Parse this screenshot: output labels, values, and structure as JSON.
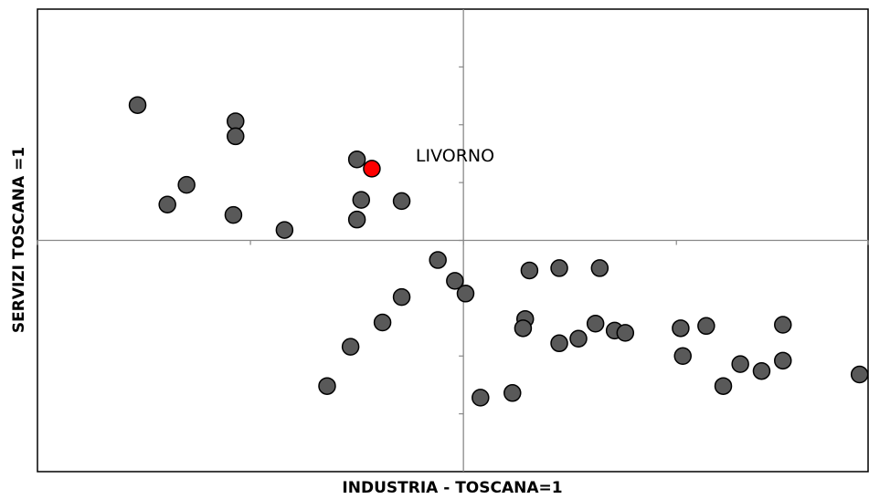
{
  "chart_data": {
    "type": "scatter",
    "title": "",
    "xlabel": "INDUSTRIA - TOSCANA=1",
    "ylabel": "SERVIZI TOSCANA =1",
    "xlim": [
      -20,
      19
    ],
    "ylim": [
      -20,
      20
    ],
    "center": [
      0,
      0
    ],
    "x_ticks": [
      -20,
      -10,
      0,
      10,
      19
    ],
    "y_ticks": [
      -15,
      -10,
      -5,
      0,
      5,
      10,
      15
    ],
    "grid": false,
    "highlight": {
      "label": "LIVORNO",
      "x": -4.3,
      "y": 6.2
    },
    "points": [
      {
        "x": -15.3,
        "y": 11.7
      },
      {
        "x": -10.7,
        "y": 10.3
      },
      {
        "x": -10.7,
        "y": 9.0
      },
      {
        "x": -5.0,
        "y": 7.0
      },
      {
        "x": -13.0,
        "y": 4.8
      },
      {
        "x": -13.9,
        "y": 3.1
      },
      {
        "x": -10.8,
        "y": 2.2
      },
      {
        "x": -8.4,
        "y": 0.9
      },
      {
        "x": -4.8,
        "y": 3.5
      },
      {
        "x": -5.0,
        "y": 1.8
      },
      {
        "x": -2.9,
        "y": 3.4
      },
      {
        "x": -1.2,
        "y": -1.7
      },
      {
        "x": -0.4,
        "y": -3.5
      },
      {
        "x": 0.1,
        "y": -4.6
      },
      {
        "x": -2.9,
        "y": -4.9
      },
      {
        "x": -3.8,
        "y": -7.1
      },
      {
        "x": -5.3,
        "y": -9.2
      },
      {
        "x": -6.4,
        "y": -12.6
      },
      {
        "x": 0.8,
        "y": -13.6
      },
      {
        "x": 2.3,
        "y": -13.2
      },
      {
        "x": 2.9,
        "y": -6.8
      },
      {
        "x": 2.8,
        "y": -7.6
      },
      {
        "x": 3.1,
        "y": -2.6
      },
      {
        "x": 4.5,
        "y": -2.4
      },
      {
        "x": 6.4,
        "y": -2.4
      },
      {
        "x": 4.5,
        "y": -8.9
      },
      {
        "x": 5.4,
        "y": -8.5
      },
      {
        "x": 6.2,
        "y": -7.2
      },
      {
        "x": 7.1,
        "y": -7.8
      },
      {
        "x": 7.6,
        "y": -8.0
      },
      {
        "x": 10.2,
        "y": -7.6
      },
      {
        "x": 11.4,
        "y": -7.4
      },
      {
        "x": 15.0,
        "y": -7.3
      },
      {
        "x": 10.3,
        "y": -10.0
      },
      {
        "x": 12.2,
        "y": -12.6
      },
      {
        "x": 13.0,
        "y": -10.7
      },
      {
        "x": 14.0,
        "y": -11.3
      },
      {
        "x": 15.0,
        "y": -10.4
      },
      {
        "x": 18.6,
        "y": -11.6
      }
    ]
  },
  "colors": {
    "point_fill": "#595959",
    "highlight_fill": "#ff0000",
    "frame": "#000000",
    "cross_axis": "#888888"
  }
}
